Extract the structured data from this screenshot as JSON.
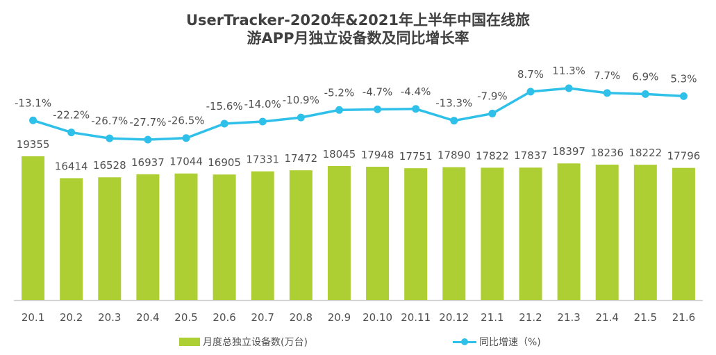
{
  "chart_data": {
    "type": "bar+line",
    "title_line1": "UserTracker-2020年&2021年上半年中国在线旅",
    "title_line2": "游APP月独立设备数及同比增长率",
    "categories": [
      "20.1",
      "20.2",
      "20.3",
      "20.4",
      "20.5",
      "20.6",
      "20.7",
      "20.8",
      "20.9",
      "20.10",
      "20.11",
      "20.12",
      "21.1",
      "21.2",
      "21.3",
      "21.4",
      "21.5",
      "21.6"
    ],
    "series": [
      {
        "name": "月度总独立设备数(万台)",
        "type": "bar",
        "color": "#aecf34",
        "values": [
          19355,
          16414,
          16528,
          16937,
          17044,
          16905,
          17331,
          17472,
          18045,
          17948,
          17751,
          17890,
          17822,
          17837,
          18397,
          18236,
          18222,
          17796
        ]
      },
      {
        "name": "同比增速（%)",
        "type": "line",
        "color": "#2fc0ea",
        "values": [
          -13.1,
          -22.2,
          -26.7,
          -27.7,
          -26.5,
          -15.6,
          -14.0,
          -10.9,
          -5.2,
          -4.7,
          -4.4,
          -13.3,
          -7.9,
          8.7,
          11.3,
          7.7,
          6.9,
          5.3
        ],
        "labels": [
          "-13.1%",
          "-22.2%",
          "-26.7%",
          "-27.7%",
          "-26.5%",
          "-15.6%",
          "-14.0%",
          "-10.9%",
          "-5.2%",
          "-4.7%",
          "-4.4%",
          "-13.3%",
          "-7.9%",
          "8.7%",
          "11.3%",
          "7.7%",
          "6.9%",
          "5.3%"
        ]
      }
    ],
    "legend": {
      "position": "bottom"
    },
    "grid": false
  }
}
